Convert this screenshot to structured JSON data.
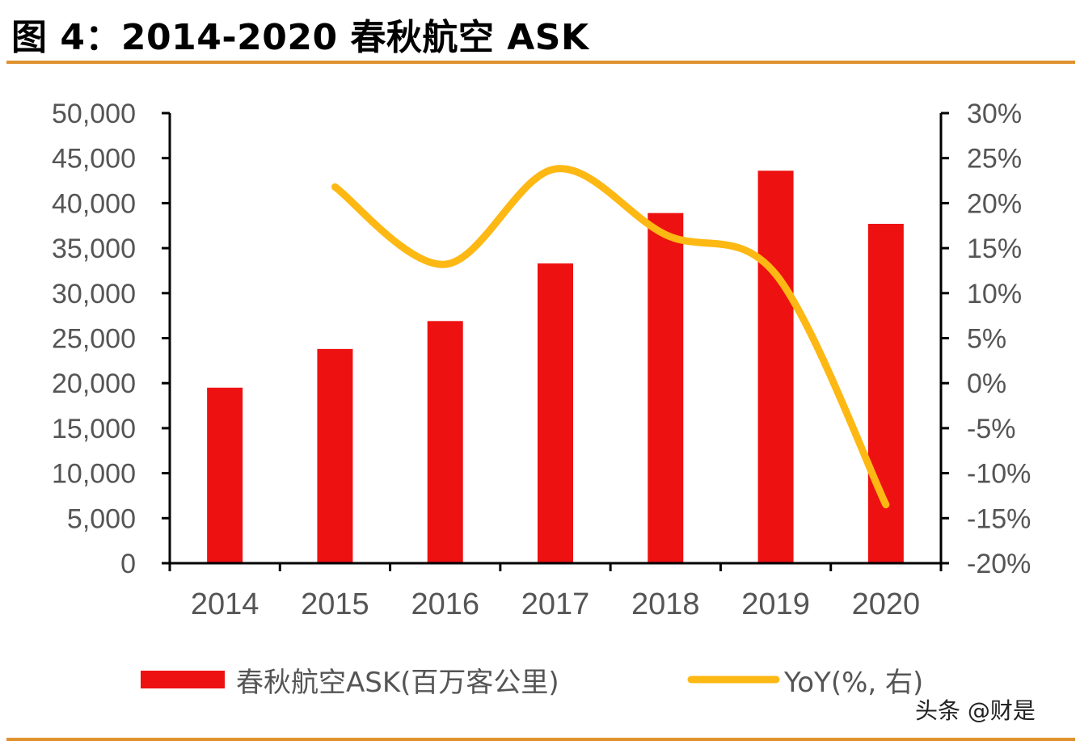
{
  "title": "图 4：2014-2020 春秋航空 ASK",
  "watermark": "头条 @财是",
  "colors": {
    "bar": "#ee1111",
    "line": "#fdb813",
    "rule": "#e0922f",
    "axis": "#000000",
    "text": "#555555"
  },
  "chart_data": {
    "type": "bar+line",
    "categories": [
      "2014",
      "2015",
      "2016",
      "2017",
      "2018",
      "2019",
      "2020"
    ],
    "series": [
      {
        "name": "春秋航空ASK(百万客公里)",
        "type": "bar",
        "axis": "left",
        "values": [
          19500,
          23800,
          26900,
          33300,
          38900,
          43600,
          37700
        ]
      },
      {
        "name": "YoY(%, 右)",
        "type": "line",
        "axis": "right",
        "values": [
          null,
          21.8,
          13.2,
          23.8,
          16.5,
          12.1,
          -13.5
        ]
      }
    ],
    "y_left": {
      "min": 0,
      "max": 50000,
      "ticks": [
        "0",
        "5,000",
        "10,000",
        "15,000",
        "20,000",
        "25,000",
        "30,000",
        "35,000",
        "40,000",
        "45,000",
        "50,000"
      ]
    },
    "y_right": {
      "min": -20,
      "max": 30,
      "ticks": [
        "-20%",
        "-15%",
        "-10%",
        "-5%",
        "0%",
        "5%",
        "10%",
        "15%",
        "20%",
        "25%",
        "30%"
      ]
    },
    "grid": false,
    "legend": "bottom"
  }
}
